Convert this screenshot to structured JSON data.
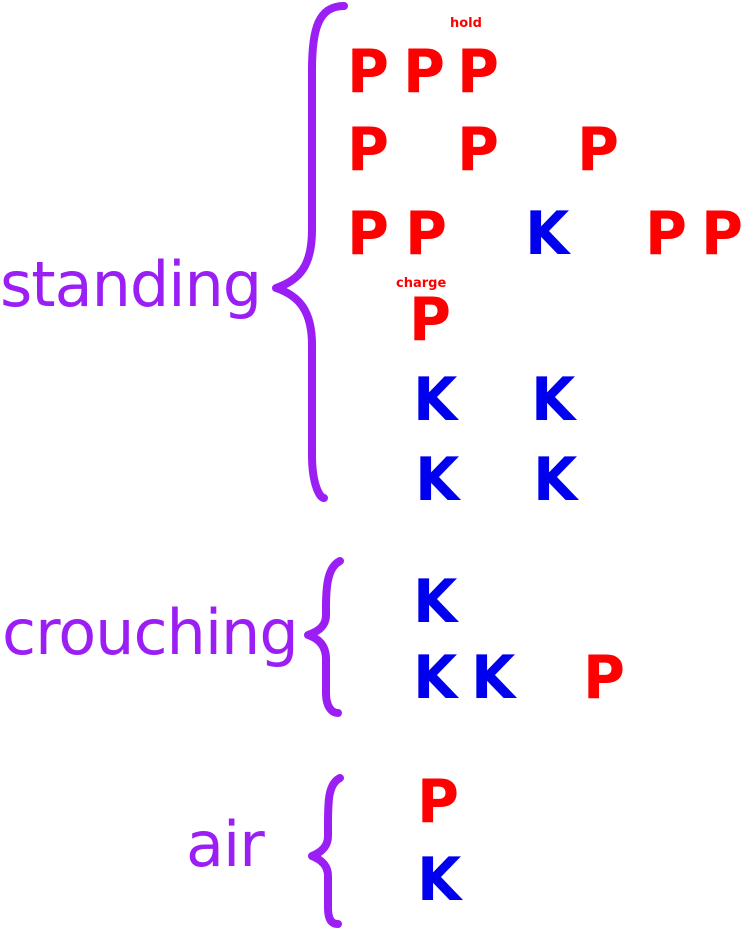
{
  "groups": [
    {
      "label": "standing"
    },
    {
      "label": "crouching"
    },
    {
      "label": "air"
    }
  ],
  "inputs": {
    "punch": "P",
    "kick": "K"
  },
  "annotations": {
    "hold": "hold",
    "charge": "charge"
  },
  "colors": {
    "label": "#9b1ff5",
    "punch": "#ff0000",
    "kick": "#0000ee"
  }
}
